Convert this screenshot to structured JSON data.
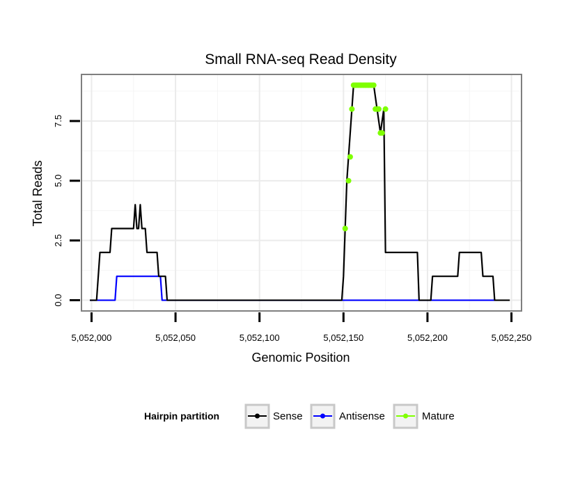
{
  "chart_data": {
    "type": "line",
    "title": "Small RNA-seq Read Density",
    "xlabel": "Genomic Position",
    "ylabel": "Total Reads",
    "xlim": [
      5051994,
      5052256
    ],
    "ylim": [
      -0.45,
      9.45
    ],
    "x_ticks": [
      5052000,
      5052050,
      5052100,
      5052150,
      5052200,
      5052250
    ],
    "x_tick_labels": [
      "5,052,000",
      "5,052,050",
      "5,052,100",
      "5,052,150",
      "5,052,200",
      "5,052,250"
    ],
    "y_ticks": [
      0,
      2.5,
      5,
      7.5
    ],
    "y_tick_labels": [
      "0.0",
      "2.5",
      "5.0",
      "7.5"
    ],
    "grid": true,
    "legend": {
      "title": "Hairpin partition",
      "placement": "bottom",
      "entries": [
        "Sense",
        "Antisense",
        "Mature"
      ]
    },
    "series": [
      {
        "name": "Sense",
        "color": "#000000",
        "points": [
          [
            5051999,
            0
          ],
          [
            5052003,
            0
          ],
          [
            5052005,
            2
          ],
          [
            5052011,
            2
          ],
          [
            5052012,
            3
          ],
          [
            5052025,
            3
          ],
          [
            5052026,
            4
          ],
          [
            5052027,
            3
          ],
          [
            5052028,
            3
          ],
          [
            5052029,
            4
          ],
          [
            5052030,
            3
          ],
          [
            5052032,
            3
          ],
          [
            5052033,
            2
          ],
          [
            5052039,
            2
          ],
          [
            5052040,
            1
          ],
          [
            5052044,
            1
          ],
          [
            5052045,
            0
          ],
          [
            5052149,
            0
          ],
          [
            5052150,
            1
          ],
          [
            5052151,
            3
          ],
          [
            5052152,
            5
          ],
          [
            5052153,
            6
          ],
          [
            5052155,
            8
          ],
          [
            5052156,
            9
          ],
          [
            5052168,
            9
          ],
          [
            5052170,
            8
          ],
          [
            5052172,
            7
          ],
          [
            5052174,
            8
          ],
          [
            5052175,
            2
          ],
          [
            5052194,
            2
          ],
          [
            5052195,
            0
          ],
          [
            5052202,
            0
          ],
          [
            5052203,
            1
          ],
          [
            5052218,
            1
          ],
          [
            5052219,
            2
          ],
          [
            5052232,
            2
          ],
          [
            5052233,
            1
          ],
          [
            5052239,
            1
          ],
          [
            5052240,
            0
          ],
          [
            5052249,
            0
          ]
        ]
      },
      {
        "name": "Antisense",
        "color": "#0000ff",
        "points": [
          [
            5051999,
            0
          ],
          [
            5052014,
            0
          ],
          [
            5052015,
            1
          ],
          [
            5052041,
            1
          ],
          [
            5052042,
            0
          ],
          [
            5052240,
            0
          ]
        ]
      },
      {
        "name": "Mature",
        "color": "#7fff00",
        "points": [
          [
            5052151,
            3
          ],
          [
            5052153,
            5
          ],
          [
            5052154,
            6
          ],
          [
            5052155,
            8
          ],
          [
            5052156,
            9
          ],
          [
            5052157,
            9
          ],
          [
            5052158,
            9
          ],
          [
            5052159,
            9
          ],
          [
            5052160,
            9
          ],
          [
            5052161,
            9
          ],
          [
            5052162,
            9
          ],
          [
            5052163,
            9
          ],
          [
            5052164,
            9
          ],
          [
            5052165,
            9
          ],
          [
            5052166,
            9
          ],
          [
            5052167,
            9
          ],
          [
            5052168,
            9
          ],
          [
            5052169,
            8
          ],
          [
            5052170,
            8
          ],
          [
            5052171,
            8
          ],
          [
            5052172,
            7
          ],
          [
            5052173,
            7
          ],
          [
            5052175,
            8
          ]
        ]
      }
    ]
  },
  "legend_icons": {
    "sense": "line-dot-icon",
    "antisense": "line-dot-icon",
    "mature": "line-dot-icon"
  }
}
